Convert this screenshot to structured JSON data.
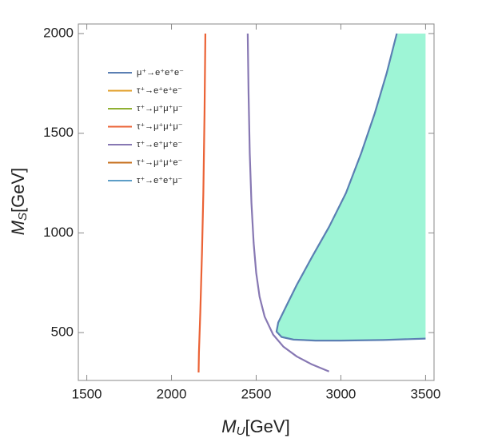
{
  "chart_data": {
    "type": "line",
    "x_label": {
      "symbol": "M",
      "subscript": "U",
      "unit": "[GeV]"
    },
    "y_label": {
      "symbol": "M",
      "subscript": "S",
      "unit": "[GeV]"
    },
    "xlim": [
      1450,
      3550
    ],
    "xticks": [
      1500,
      2000,
      2500,
      3000,
      3500
    ],
    "ylim": [
      260,
      2048
    ],
    "yticks": [
      500,
      1000,
      1500,
      2000
    ],
    "legend": "upper left",
    "series": [
      {
        "name": "μ⁺→e⁺e⁺e⁻",
        "color": "#5b7fb3",
        "fill": "#9ef5d6",
        "x": [
          3330,
          3270,
          3200,
          3120,
          3030,
          2930,
          2830,
          2740,
          2670,
          2630,
          2620,
          2650,
          2720,
          2850,
          3000,
          3250,
          3500
        ],
        "values": [
          2000,
          1800,
          1600,
          1400,
          1200,
          1030,
          880,
          740,
          620,
          550,
          505,
          478,
          465,
          460,
          460,
          463,
          470
        ]
      },
      {
        "name": "τ⁺→e⁺e⁺e⁻",
        "color": "#e19c24",
        "x": [],
        "values": []
      },
      {
        "name": "τ⁺→μ⁺μ⁺μ⁻",
        "color": "#8fb032",
        "x": [],
        "values": []
      },
      {
        "name": "τ⁺→μ⁺μ⁺μ⁻",
        "color": "#eb6235",
        "x": [
          2200,
          2195,
          2188,
          2180,
          2170,
          2162,
          2160
        ],
        "values": [
          2000,
          1600,
          1200,
          900,
          600,
          400,
          300
        ]
      },
      {
        "name": "τ⁺→e⁺μ⁺e⁻",
        "color": "#8778b3",
        "x": [
          2450,
          2455,
          2462,
          2472,
          2485,
          2500,
          2520,
          2550,
          2600,
          2660,
          2740,
          2830,
          2930
        ],
        "values": [
          2000,
          1700,
          1400,
          1150,
          950,
          800,
          680,
          580,
          490,
          430,
          380,
          340,
          305
        ]
      },
      {
        "name": "τ⁺→μ⁺μ⁺e⁻",
        "color": "#c56e1a",
        "x": [],
        "values": []
      },
      {
        "name": "τ⁺→e⁺e⁺μ⁻",
        "color": "#5d9ec7",
        "x": [],
        "values": []
      }
    ]
  }
}
